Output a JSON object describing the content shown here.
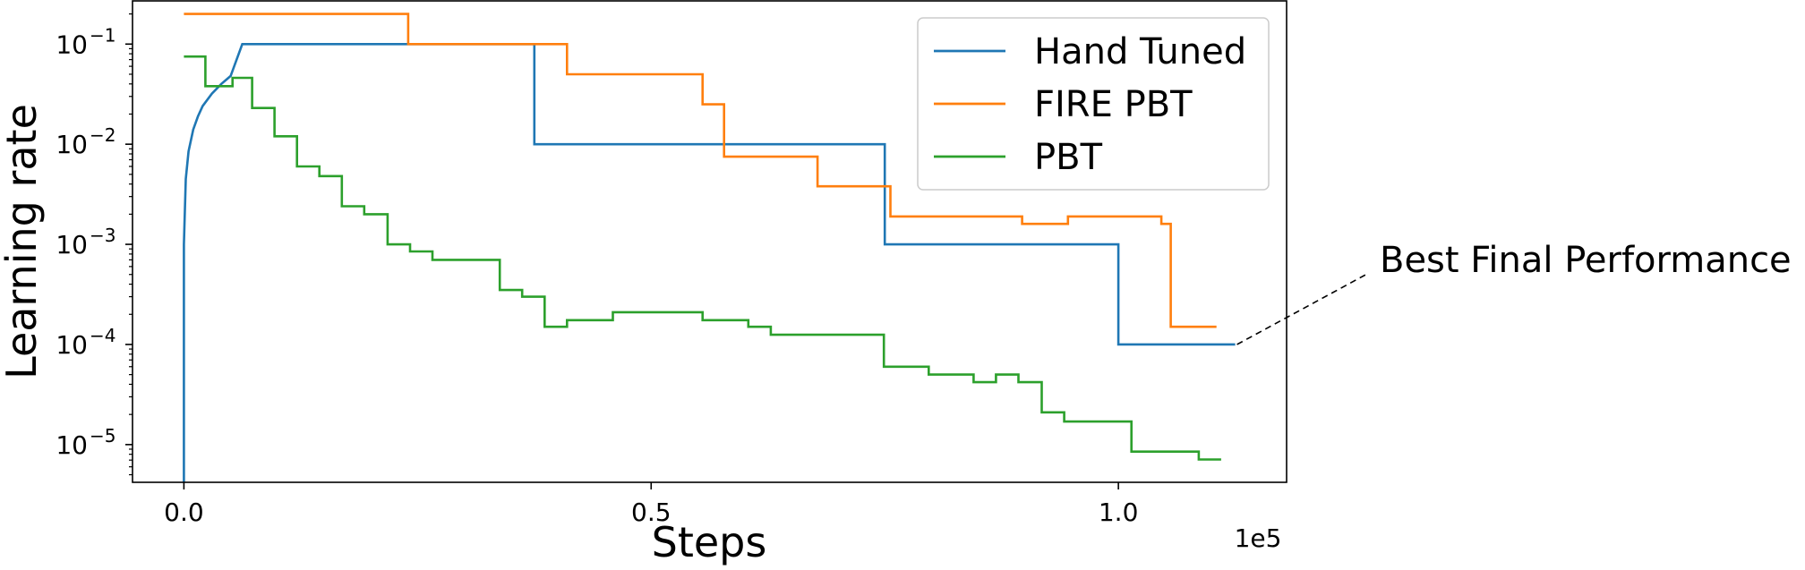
{
  "chart_data": {
    "type": "line",
    "title": "",
    "xlabel": "Steps",
    "ylabel": "Learning rate",
    "x_offset_label": "1e5",
    "xlim": [
      -5500,
      118000
    ],
    "ylim": [
      4.2e-06,
      0.27
    ],
    "yscale": "log",
    "grid": false,
    "legend_position": "top-right",
    "x_ticks": [
      {
        "value": 0,
        "label": "0.0"
      },
      {
        "value": 50000,
        "label": "0.5"
      },
      {
        "value": 100000,
        "label": "1.0"
      }
    ],
    "y_ticks": [
      {
        "value": 0.1,
        "base": "10",
        "exp": "−1"
      },
      {
        "value": 0.01,
        "base": "10",
        "exp": "−2"
      },
      {
        "value": 0.001,
        "base": "10",
        "exp": "−3"
      },
      {
        "value": 0.0001,
        "base": "10",
        "exp": "−4"
      },
      {
        "value": 1e-05,
        "base": "10",
        "exp": "−5"
      }
    ],
    "series": [
      {
        "name": "Hand Tuned",
        "color": "#1f77b4",
        "points": [
          [
            0,
            4.2e-06
          ],
          [
            0,
            0.001
          ],
          [
            200,
            0.0045
          ],
          [
            500,
            0.0085
          ],
          [
            1000,
            0.014
          ],
          [
            1500,
            0.019
          ],
          [
            2000,
            0.024
          ],
          [
            3000,
            0.032
          ],
          [
            4000,
            0.04
          ],
          [
            5000,
            0.048
          ],
          [
            6250,
            0.1
          ],
          [
            37500,
            0.1
          ],
          [
            37500,
            0.01
          ],
          [
            75000,
            0.01
          ],
          [
            75000,
            0.001
          ],
          [
            100000,
            0.001
          ],
          [
            100000,
            0.0001
          ],
          [
            112500,
            0.0001
          ]
        ]
      },
      {
        "name": "FIRE PBT",
        "color": "#ff7f0e",
        "points": [
          [
            0,
            0.2
          ],
          [
            24000,
            0.2
          ],
          [
            24000,
            0.1
          ],
          [
            41000,
            0.1
          ],
          [
            41000,
            0.05
          ],
          [
            55500,
            0.05
          ],
          [
            55500,
            0.025
          ],
          [
            57800,
            0.025
          ],
          [
            57800,
            0.0075
          ],
          [
            67800,
            0.0075
          ],
          [
            67800,
            0.0038
          ],
          [
            75600,
            0.0038
          ],
          [
            75600,
            0.0019
          ],
          [
            89700,
            0.0019
          ],
          [
            89700,
            0.0016
          ],
          [
            94600,
            0.0016
          ],
          [
            94600,
            0.0019
          ],
          [
            104600,
            0.0019
          ],
          [
            104600,
            0.0016
          ],
          [
            105600,
            0.0016
          ],
          [
            105600,
            0.00015
          ],
          [
            110500,
            0.00015
          ]
        ]
      },
      {
        "name": "PBT",
        "color": "#2ca02c",
        "points": [
          [
            0,
            0.075
          ],
          [
            2300,
            0.075
          ],
          [
            2300,
            0.038
          ],
          [
            5200,
            0.038
          ],
          [
            5200,
            0.046
          ],
          [
            7300,
            0.046
          ],
          [
            7300,
            0.023
          ],
          [
            9700,
            0.023
          ],
          [
            9700,
            0.012
          ],
          [
            12100,
            0.012
          ],
          [
            12100,
            0.006
          ],
          [
            14500,
            0.006
          ],
          [
            14500,
            0.0048
          ],
          [
            16900,
            0.0048
          ],
          [
            16900,
            0.0024
          ],
          [
            19300,
            0.0024
          ],
          [
            19300,
            0.002
          ],
          [
            21800,
            0.002
          ],
          [
            21800,
            0.001
          ],
          [
            24200,
            0.001
          ],
          [
            24200,
            0.00085
          ],
          [
            26600,
            0.00085
          ],
          [
            26600,
            0.0007
          ],
          [
            33800,
            0.0007
          ],
          [
            33800,
            0.00035
          ],
          [
            36200,
            0.00035
          ],
          [
            36200,
            0.0003
          ],
          [
            38600,
            0.0003
          ],
          [
            38600,
            0.00015
          ],
          [
            41000,
            0.00015
          ],
          [
            41000,
            0.000175
          ],
          [
            45900,
            0.000175
          ],
          [
            45900,
            0.00021
          ],
          [
            55500,
            0.00021
          ],
          [
            55500,
            0.000175
          ],
          [
            60400,
            0.000175
          ],
          [
            60400,
            0.00015
          ],
          [
            62800,
            0.00015
          ],
          [
            62800,
            0.000125
          ],
          [
            74900,
            0.000125
          ],
          [
            74900,
            6e-05
          ],
          [
            79700,
            6e-05
          ],
          [
            79700,
            5e-05
          ],
          [
            84500,
            5e-05
          ],
          [
            84500,
            4.2e-05
          ],
          [
            86900,
            4.2e-05
          ],
          [
            86900,
            5e-05
          ],
          [
            89300,
            5e-05
          ],
          [
            89300,
            4.2e-05
          ],
          [
            91800,
            4.2e-05
          ],
          [
            91800,
            2.1e-05
          ],
          [
            94200,
            2.1e-05
          ],
          [
            94200,
            1.7e-05
          ],
          [
            101400,
            1.7e-05
          ],
          [
            101400,
            8.5e-06
          ],
          [
            108600,
            8.5e-06
          ],
          [
            108600,
            7.1e-06
          ],
          [
            111000,
            7.1e-06
          ]
        ]
      }
    ],
    "annotations": [
      {
        "text": "Best Final Performance",
        "target": [
          112500,
          0.0001
        ]
      }
    ]
  }
}
